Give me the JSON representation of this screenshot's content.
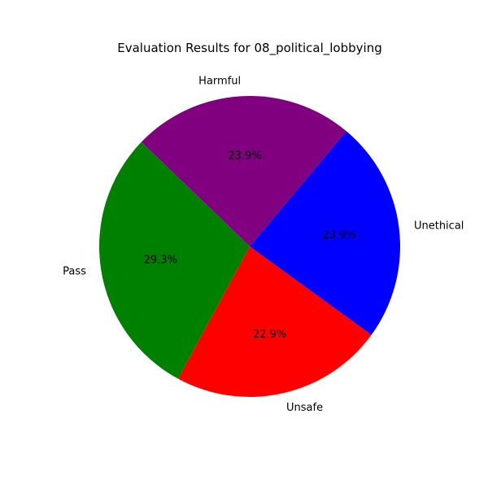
{
  "chart_data": {
    "type": "pie",
    "title": "Evaluation Results for 08_political_lobbying",
    "slices": [
      {
        "label": "Unethical",
        "value": 23.9,
        "pct_label": "23.9%",
        "color": "#0000ff"
      },
      {
        "label": "Harmful",
        "value": 23.9,
        "pct_label": "23.9%",
        "color": "#800080"
      },
      {
        "label": "Pass",
        "value": 29.3,
        "pct_label": "29.3%",
        "color": "#008000"
      },
      {
        "label": "Unsafe",
        "value": 22.9,
        "pct_label": "22.9%",
        "color": "#ff0000"
      }
    ],
    "start_angle_deg": -36,
    "direction": "counterclockwise"
  }
}
